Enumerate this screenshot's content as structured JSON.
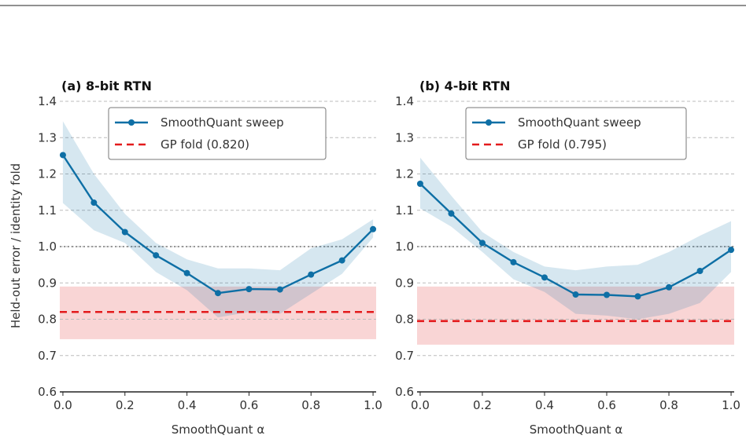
{
  "figure": {
    "top_border": true
  },
  "chart_data": [
    {
      "type": "line",
      "title": "(a) 8-bit RTN",
      "xlabel": "SmoothQuant α",
      "ylabel": "Held-out error / identity fold",
      "xlim": [
        -0.01,
        1.01
      ],
      "ylim": [
        0.6,
        1.4
      ],
      "x_ticks": [
        "0.0",
        "0.2",
        "0.4",
        "0.6",
        "0.8",
        "1.0"
      ],
      "y_ticks": [
        "0.6",
        "0.7",
        "0.8",
        "0.9",
        "1.0",
        "1.1",
        "1.2",
        "1.3",
        "1.4"
      ],
      "grid": "horizontal dashed",
      "legend_position": "top-center",
      "reference_line": {
        "y": 1.0,
        "style": "dotted",
        "color": "#333333"
      },
      "series": [
        {
          "name": "SmoothQuant sweep",
          "color": "#0e6fa5",
          "x": [
            0.0,
            0.1,
            0.2,
            0.3,
            0.4,
            0.5,
            0.6,
            0.7,
            0.8,
            0.9,
            1.0
          ],
          "y": [
            1.252,
            1.121,
            1.04,
            0.976,
            0.927,
            0.872,
            0.883,
            0.882,
            0.923,
            0.962,
            1.048
          ],
          "band_upper": [
            1.345,
            1.2,
            1.09,
            1.01,
            0.965,
            0.94,
            0.94,
            0.935,
            0.995,
            1.02,
            1.075
          ],
          "band_lower": [
            1.12,
            1.045,
            1.01,
            0.93,
            0.88,
            0.805,
            0.82,
            0.815,
            0.87,
            0.925,
            1.025
          ]
        },
        {
          "name": "GP fold (0.820)",
          "color": "#e31a1c",
          "y": 0.82,
          "band": [
            0.745,
            0.89
          ],
          "band_color": "#f9d5d5",
          "style": "dashed"
        }
      ]
    },
    {
      "type": "line",
      "title": "(b) 4-bit RTN",
      "xlabel": "SmoothQuant α",
      "ylabel": "",
      "xlim": [
        -0.01,
        1.01
      ],
      "ylim": [
        0.6,
        1.4
      ],
      "x_ticks": [
        "0.0",
        "0.2",
        "0.4",
        "0.6",
        "0.8",
        "1.0"
      ],
      "y_ticks": [
        "0.6",
        "0.7",
        "0.8",
        "0.9",
        "1.0",
        "1.1",
        "1.2",
        "1.3",
        "1.4"
      ],
      "grid": "horizontal dashed",
      "legend_position": "top-center",
      "reference_line": {
        "y": 1.0,
        "style": "dotted",
        "color": "#333333"
      },
      "series": [
        {
          "name": "SmoothQuant sweep",
          "color": "#0e6fa5",
          "x": [
            0.0,
            0.1,
            0.2,
            0.3,
            0.4,
            0.5,
            0.6,
            0.7,
            0.8,
            0.9,
            1.0
          ],
          "y": [
            1.173,
            1.091,
            1.01,
            0.957,
            0.915,
            0.868,
            0.867,
            0.863,
            0.888,
            0.933,
            0.991
          ],
          "band_upper": [
            1.245,
            1.14,
            1.04,
            0.985,
            0.945,
            0.935,
            0.945,
            0.95,
            0.985,
            1.03,
            1.07
          ],
          "band_lower": [
            1.105,
            1.055,
            0.985,
            0.91,
            0.875,
            0.815,
            0.81,
            0.8,
            0.815,
            0.845,
            0.93
          ]
        },
        {
          "name": "GP fold (0.795)",
          "color": "#e31a1c",
          "y": 0.795,
          "band": [
            0.73,
            0.89
          ],
          "band_color": "#f9d5d5",
          "style": "dashed"
        }
      ]
    }
  ]
}
